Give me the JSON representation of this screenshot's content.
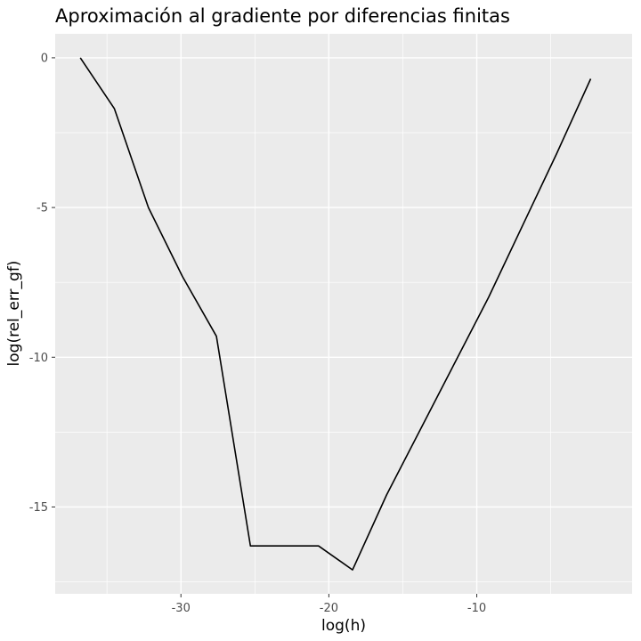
{
  "chart_data": {
    "type": "line",
    "title": "Aproximación al gradiente por diferencias finitas",
    "xlabel": "log(h)",
    "ylabel": "log(rel_err_gf)",
    "xlim": [
      -38.5,
      0.5
    ],
    "ylim": [
      -17.9,
      0.8
    ],
    "x_ticks": [
      -30,
      -20,
      -10
    ],
    "x_tick_labels": [
      "-30",
      "-20",
      "-10"
    ],
    "y_ticks": [
      0,
      -5,
      -10,
      -15
    ],
    "y_tick_labels": [
      "0",
      "-5",
      "-10",
      "-15"
    ],
    "x_minor_ticks": [
      -35,
      -25,
      -15,
      -5
    ],
    "y_minor_ticks": [
      -2.5,
      -7.5,
      -12.5,
      -17.5
    ],
    "grid": true,
    "panel_background": "#ebebeb",
    "line_color": "#000000",
    "series": [
      {
        "x": [
          -36.8,
          -34.5,
          -32.2,
          -29.9,
          -27.6,
          -25.3,
          -23.0,
          -20.7,
          -18.4,
          -16.1,
          -13.8,
          -11.5,
          -9.2,
          -6.9,
          -4.6,
          -2.3
        ],
        "y": [
          0.0,
          -1.7,
          -5.0,
          -7.3,
          -9.3,
          -16.3,
          -16.3,
          -16.3,
          -17.1,
          -14.6,
          -12.4,
          -10.2,
          -8.0,
          -5.6,
          -3.2,
          -0.7
        ]
      }
    ]
  }
}
